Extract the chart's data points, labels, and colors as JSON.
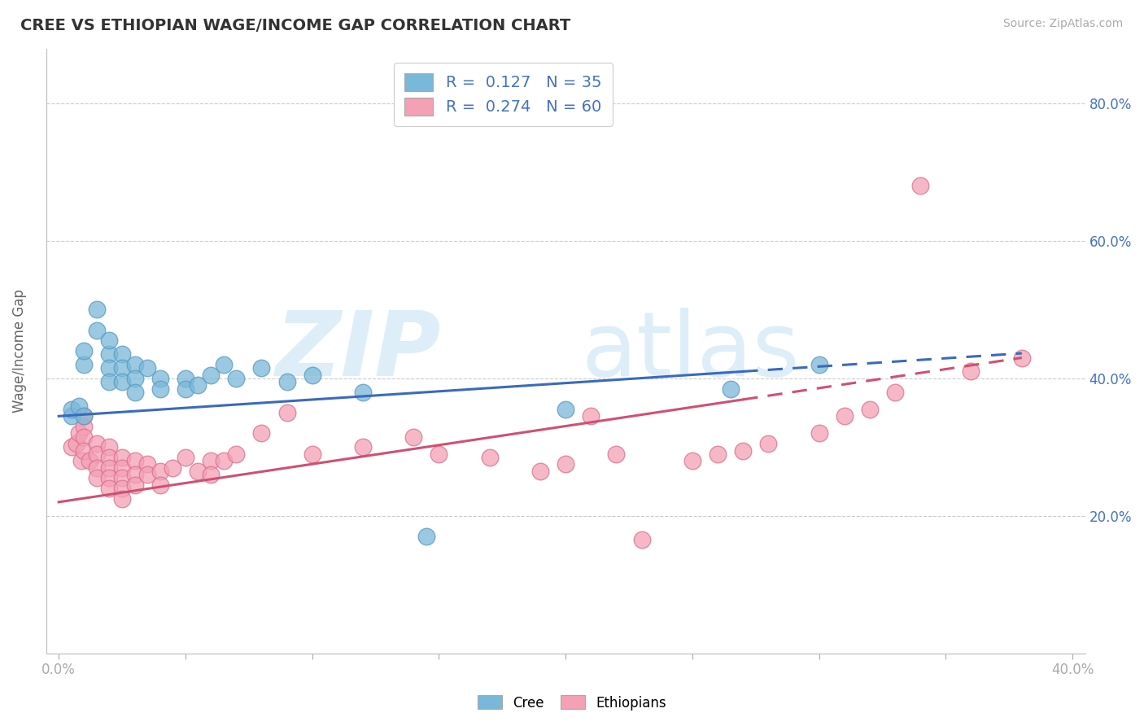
{
  "title": "CREE VS ETHIOPIAN WAGE/INCOME GAP CORRELATION CHART",
  "source": "Source: ZipAtlas.com",
  "ylabel": "Wage/Income Gap",
  "ytick_labels": [
    "20.0%",
    "40.0%",
    "60.0%",
    "80.0%"
  ],
  "ytick_values": [
    0.2,
    0.4,
    0.6,
    0.8
  ],
  "xlim": [
    0.0,
    0.4
  ],
  "ylim": [
    0.0,
    0.88
  ],
  "cree_color": "#7ab8d9",
  "cree_edge_color": "#5a9abf",
  "ethiopian_color": "#f4a0b5",
  "ethiopian_edge_color": "#d97090",
  "cree_line_color": "#3a6abf",
  "ethiopian_line_color": "#d05070",
  "cree_line_style": "solid",
  "ethiopian_line_style": "dashed",
  "cree_data": [
    [
      0.005,
      0.345
    ],
    [
      0.005,
      0.355
    ],
    [
      0.008,
      0.36
    ],
    [
      0.01,
      0.345
    ],
    [
      0.01,
      0.42
    ],
    [
      0.01,
      0.44
    ],
    [
      0.015,
      0.47
    ],
    [
      0.015,
      0.5
    ],
    [
      0.02,
      0.435
    ],
    [
      0.02,
      0.455
    ],
    [
      0.02,
      0.415
    ],
    [
      0.02,
      0.395
    ],
    [
      0.025,
      0.435
    ],
    [
      0.025,
      0.415
    ],
    [
      0.025,
      0.395
    ],
    [
      0.03,
      0.42
    ],
    [
      0.03,
      0.4
    ],
    [
      0.03,
      0.38
    ],
    [
      0.035,
      0.415
    ],
    [
      0.04,
      0.4
    ],
    [
      0.04,
      0.385
    ],
    [
      0.05,
      0.4
    ],
    [
      0.05,
      0.385
    ],
    [
      0.055,
      0.39
    ],
    [
      0.06,
      0.405
    ],
    [
      0.065,
      0.42
    ],
    [
      0.07,
      0.4
    ],
    [
      0.08,
      0.415
    ],
    [
      0.09,
      0.395
    ],
    [
      0.1,
      0.405
    ],
    [
      0.12,
      0.38
    ],
    [
      0.145,
      0.17
    ],
    [
      0.2,
      0.355
    ],
    [
      0.265,
      0.385
    ],
    [
      0.3,
      0.42
    ]
  ],
  "ethiopian_data": [
    [
      0.005,
      0.3
    ],
    [
      0.007,
      0.305
    ],
    [
      0.008,
      0.32
    ],
    [
      0.009,
      0.28
    ],
    [
      0.01,
      0.33
    ],
    [
      0.01,
      0.345
    ],
    [
      0.01,
      0.315
    ],
    [
      0.01,
      0.295
    ],
    [
      0.012,
      0.28
    ],
    [
      0.015,
      0.305
    ],
    [
      0.015,
      0.29
    ],
    [
      0.015,
      0.27
    ],
    [
      0.015,
      0.255
    ],
    [
      0.02,
      0.3
    ],
    [
      0.02,
      0.285
    ],
    [
      0.02,
      0.27
    ],
    [
      0.02,
      0.255
    ],
    [
      0.02,
      0.24
    ],
    [
      0.025,
      0.285
    ],
    [
      0.025,
      0.27
    ],
    [
      0.025,
      0.255
    ],
    [
      0.025,
      0.24
    ],
    [
      0.025,
      0.225
    ],
    [
      0.03,
      0.28
    ],
    [
      0.03,
      0.26
    ],
    [
      0.03,
      0.245
    ],
    [
      0.035,
      0.275
    ],
    [
      0.035,
      0.26
    ],
    [
      0.04,
      0.265
    ],
    [
      0.04,
      0.245
    ],
    [
      0.045,
      0.27
    ],
    [
      0.05,
      0.285
    ],
    [
      0.055,
      0.265
    ],
    [
      0.06,
      0.28
    ],
    [
      0.06,
      0.26
    ],
    [
      0.065,
      0.28
    ],
    [
      0.07,
      0.29
    ],
    [
      0.08,
      0.32
    ],
    [
      0.09,
      0.35
    ],
    [
      0.1,
      0.29
    ],
    [
      0.12,
      0.3
    ],
    [
      0.14,
      0.315
    ],
    [
      0.15,
      0.29
    ],
    [
      0.17,
      0.285
    ],
    [
      0.19,
      0.265
    ],
    [
      0.2,
      0.275
    ],
    [
      0.21,
      0.345
    ],
    [
      0.22,
      0.29
    ],
    [
      0.23,
      0.165
    ],
    [
      0.25,
      0.28
    ],
    [
      0.26,
      0.29
    ],
    [
      0.27,
      0.295
    ],
    [
      0.28,
      0.305
    ],
    [
      0.3,
      0.32
    ],
    [
      0.31,
      0.345
    ],
    [
      0.32,
      0.355
    ],
    [
      0.33,
      0.38
    ],
    [
      0.34,
      0.68
    ],
    [
      0.36,
      0.41
    ],
    [
      0.38,
      0.43
    ]
  ]
}
